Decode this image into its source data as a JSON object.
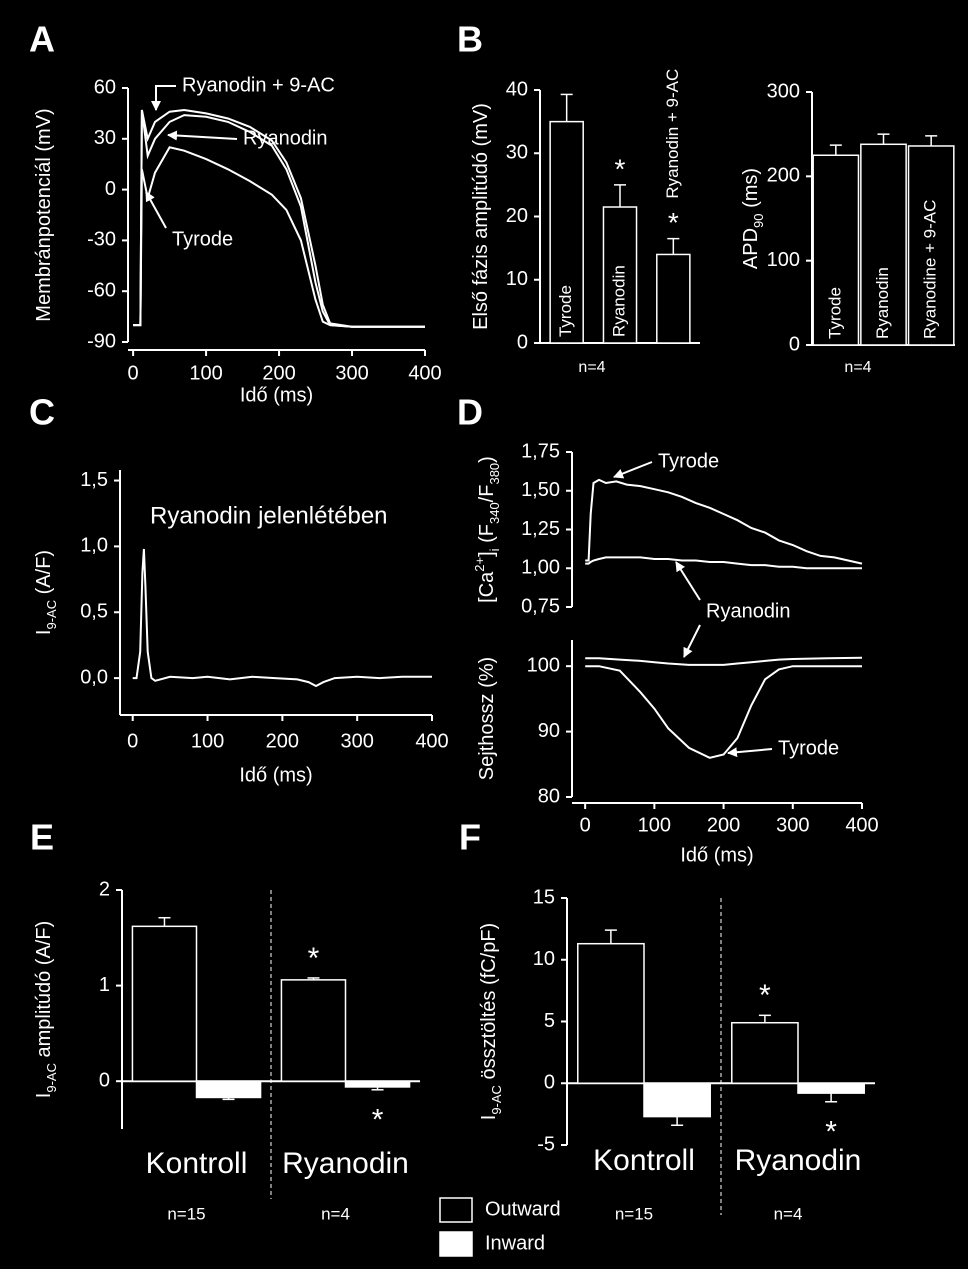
{
  "chart_data": [
    {
      "type": "line",
      "panel": "A",
      "ylabel": [
        {
          "text": "Membránpotenciál (mV)"
        }
      ],
      "xlabel": "Idő (ms)",
      "x": [
        0,
        10,
        12,
        20,
        30,
        50,
        70,
        100,
        130,
        160,
        190,
        210,
        230,
        250,
        260,
        270,
        300,
        400
      ],
      "xlim": [
        -7,
        400
      ],
      "xticks": [
        0,
        100,
        200,
        300,
        400
      ],
      "ylim": [
        -90,
        60
      ],
      "yticks": [
        -90,
        -60,
        -30,
        0,
        30,
        60
      ],
      "series": [
        {
          "name": "Ryanodin + 9-AC",
          "color": "#ffffff",
          "values": [
            -80,
            -80,
            47,
            30,
            40,
            46,
            47,
            45,
            42,
            37,
            29,
            16,
            -5,
            -45,
            -68,
            -79,
            -81,
            -81
          ]
        },
        {
          "name": "Ryanodin",
          "color": "#ffffff",
          "values": [
            -80,
            -80,
            47,
            20,
            30,
            40,
            44,
            43,
            40,
            34,
            26,
            12,
            -10,
            -55,
            -72,
            -80,
            -81,
            -81
          ]
        },
        {
          "name": "Tyrode",
          "color": "#ffffff",
          "values": [
            -80,
            -80,
            12,
            -5,
            10,
            25,
            23,
            18,
            12,
            5,
            -3,
            -12,
            -30,
            -65,
            -78,
            -80,
            -81,
            -81
          ]
        }
      ]
    },
    {
      "type": "bar",
      "panel": "B",
      "ylabel": [
        {
          "text": "Első fázis amplitúdó  (mV)"
        }
      ],
      "categories": [
        "Tyrode",
        "Ryanodin",
        "Ryanodin + 9-AC"
      ],
      "values": [
        35,
        21.5,
        14
      ],
      "errors": [
        4.3,
        3.5,
        2.5
      ],
      "significance": [
        null,
        "*",
        "*"
      ],
      "color": "#000000",
      "ylim": [
        0,
        40
      ],
      "yticks": [
        0,
        10,
        20,
        30,
        40
      ],
      "note": "n=4"
    },
    {
      "type": "bar",
      "ylabel": [
        {
          "text": "APD"
        },
        {
          "text": "90",
          "script": "sub"
        },
        {
          "text": " (ms)"
        }
      ],
      "categories": [
        "Tyrode",
        "Ryanodin",
        "Ryanodine + 9-AC"
      ],
      "values": [
        225,
        238,
        236
      ],
      "errors": [
        12,
        12,
        12
      ],
      "color": "#000000",
      "ylim": [
        0,
        300
      ],
      "yticks": [
        0,
        100,
        200,
        300
      ],
      "note": "n=4"
    },
    {
      "type": "line",
      "panel": "C",
      "ylabel": [
        {
          "text": "I"
        },
        {
          "text": "9-AC",
          "script": "sub"
        },
        {
          "text": " (A/F)"
        }
      ],
      "xlabel": "Idő (ms)",
      "annotation": "Ryanodin jelenlétében",
      "x": [
        0,
        5,
        10,
        13,
        15,
        17,
        20,
        25,
        30,
        50,
        80,
        100,
        130,
        160,
        190,
        220,
        235,
        245,
        255,
        270,
        300,
        330,
        360,
        400
      ],
      "xlim": [
        -17,
        400
      ],
      "xticks": [
        0,
        100,
        200,
        300,
        400
      ],
      "ylim": [
        -0.28,
        1.58
      ],
      "yticks": [
        {
          "value": 0,
          "label": "0,0"
        },
        {
          "value": 0.5,
          "label": "0,5"
        },
        {
          "value": 1,
          "label": "1,0"
        },
        {
          "value": 1.5,
          "label": "1,5"
        }
      ],
      "series": [
        {
          "color": "#ffffff",
          "values": [
            0,
            0,
            0.2,
            0.8,
            0.98,
            0.7,
            0.2,
            0,
            -0.02,
            0.01,
            0,
            0.01,
            -0.01,
            0.01,
            0,
            -0.01,
            -0.03,
            -0.06,
            -0.03,
            0,
            0.01,
            0,
            0.01,
            0.01
          ]
        }
      ]
    },
    {
      "type": "line",
      "panel": "D",
      "ylabel": [
        {
          "text": "[Ca"
        },
        {
          "text": "2+",
          "script": "sup"
        },
        {
          "text": "]"
        },
        {
          "text": "i",
          "script": "sub"
        },
        {
          "text": " (F"
        },
        {
          "text": "340",
          "script": "sub"
        },
        {
          "text": "/F"
        },
        {
          "text": "380",
          "script": "sub"
        },
        {
          "text": ")"
        }
      ],
      "x": [
        0,
        5,
        8,
        12,
        20,
        30,
        45,
        60,
        80,
        100,
        120,
        140,
        160,
        180,
        200,
        220,
        240,
        260,
        280,
        300,
        320,
        340,
        360,
        380,
        400
      ],
      "xlim": [
        -19,
        400
      ],
      "ylim": [
        0.75,
        1.75
      ],
      "yticks": [
        {
          "value": 0.75,
          "label": "0,75"
        },
        {
          "value": 1,
          "label": "1,00"
        },
        {
          "value": 1.25,
          "label": "1,25"
        },
        {
          "value": 1.5,
          "label": "1,50"
        },
        {
          "value": 1.75,
          "label": "1,75"
        }
      ],
      "series": [
        {
          "name": "Tyrode",
          "color": "#ffffff",
          "values": [
            1.05,
            1.05,
            1.35,
            1.55,
            1.57,
            1.55,
            1.56,
            1.54,
            1.53,
            1.51,
            1.49,
            1.46,
            1.42,
            1.39,
            1.35,
            1.31,
            1.26,
            1.23,
            1.18,
            1.15,
            1.11,
            1.08,
            1.07,
            1.05,
            1.03
          ]
        },
        {
          "name": "Ryanodin",
          "color": "#ffffff",
          "values": [
            1.03,
            1.03,
            1.04,
            1.05,
            1.06,
            1.07,
            1.07,
            1.07,
            1.07,
            1.06,
            1.06,
            1.05,
            1.05,
            1.04,
            1.04,
            1.03,
            1.02,
            1.02,
            1.01,
            1.01,
            1.0,
            1.0,
            1.0,
            1.0,
            1.0
          ]
        }
      ]
    },
    {
      "type": "line",
      "ylabel": [
        {
          "text": "Sejthossz (%)"
        }
      ],
      "xlabel": "Idő (ms)",
      "x": [
        0,
        20,
        50,
        80,
        100,
        120,
        150,
        180,
        200,
        220,
        240,
        260,
        280,
        300,
        350,
        400
      ],
      "xlim": [
        -19,
        400
      ],
      "xticks": [
        0,
        100,
        200,
        300,
        400
      ],
      "ylim": [
        80,
        104
      ],
      "yticks": [
        80,
        90,
        100
      ],
      "series": [
        {
          "name": "Tyrode",
          "color": "#ffffff",
          "values": [
            100,
            100,
            99.3,
            96,
            93.5,
            90.5,
            87.5,
            86,
            86.5,
            89,
            94,
            98,
            99.5,
            100,
            100,
            100
          ]
        },
        {
          "color": "#ffffff",
          "values": [
            101.2,
            101.2,
            101,
            100.8,
            100.6,
            100.4,
            100.2,
            100.2,
            100.2,
            100.4,
            100.6,
            100.8,
            101,
            101.1,
            101.2,
            101.3
          ]
        }
      ]
    },
    {
      "type": "bar",
      "panel": "E",
      "ylabel": [
        {
          "text": "I"
        },
        {
          "text": "9-AC",
          "script": "sub"
        },
        {
          "text": " amplitúdó (A/F)"
        }
      ],
      "categories": [
        "Kontroll",
        "Ryanodin"
      ],
      "n_labels": [
        "n=15",
        "n=4"
      ],
      "ylim": [
        -0.5,
        2
      ],
      "yticks": [
        0,
        1,
        2
      ],
      "series": [
        {
          "name": "Outward",
          "color": "#000000",
          "values": [
            1.62,
            1.06
          ],
          "errors": [
            0.09,
            0.02
          ],
          "significance": [
            null,
            "*"
          ]
        },
        {
          "name": "Inward",
          "color": "#ffffff",
          "values": [
            -0.17,
            -0.06
          ],
          "errors": [
            0.02,
            0.03
          ],
          "significance": [
            null,
            "*"
          ]
        }
      ]
    },
    {
      "type": "bar",
      "panel": "F",
      "ylabel": [
        {
          "text": "I"
        },
        {
          "text": "9-AC",
          "script": "sub"
        },
        {
          "text": " össztöltés (fC/pF)"
        }
      ],
      "categories": [
        "Kontroll",
        "Ryanodin"
      ],
      "n_labels": [
        "n=15",
        "n=4"
      ],
      "ylim": [
        -5,
        15
      ],
      "yticks": [
        -5,
        0,
        5,
        10,
        15
      ],
      "series": [
        {
          "color": "#000000",
          "values": [
            11.3,
            4.9
          ],
          "errors": [
            1.1,
            0.6
          ],
          "significance": [
            null,
            "*"
          ]
        },
        {
          "color": "#ffffff",
          "values": [
            -2.7,
            -0.8
          ],
          "errors": [
            0.7,
            0.7
          ],
          "significance": [
            null,
            "*"
          ]
        }
      ]
    }
  ]
}
